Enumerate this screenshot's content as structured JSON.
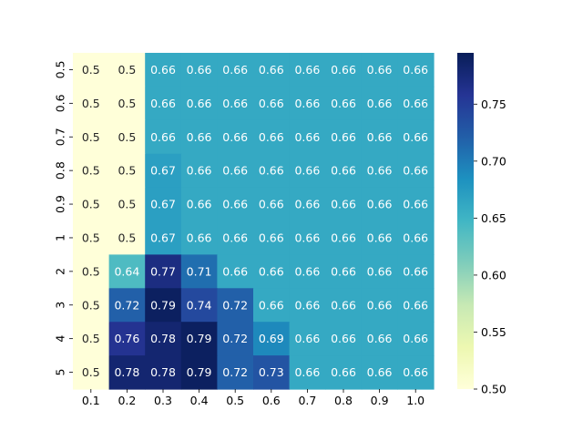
{
  "chart_data": {
    "type": "heatmap",
    "title": "",
    "xlabel": "",
    "ylabel": "",
    "x_categories": [
      "0.1",
      "0.2",
      "0.3",
      "0.4",
      "0.5",
      "0.6",
      "0.7",
      "0.8",
      "0.9",
      "1.0"
    ],
    "y_categories": [
      "0.5",
      "0.6",
      "0.7",
      "0.8",
      "0.9",
      "1",
      "2",
      "3",
      "4",
      "5"
    ],
    "values": [
      [
        0.5,
        0.5,
        0.66,
        0.66,
        0.66,
        0.66,
        0.66,
        0.66,
        0.66,
        0.66
      ],
      [
        0.5,
        0.5,
        0.66,
        0.66,
        0.66,
        0.66,
        0.66,
        0.66,
        0.66,
        0.66
      ],
      [
        0.5,
        0.5,
        0.66,
        0.66,
        0.66,
        0.66,
        0.66,
        0.66,
        0.66,
        0.66
      ],
      [
        0.5,
        0.5,
        0.67,
        0.66,
        0.66,
        0.66,
        0.66,
        0.66,
        0.66,
        0.66
      ],
      [
        0.5,
        0.5,
        0.67,
        0.66,
        0.66,
        0.66,
        0.66,
        0.66,
        0.66,
        0.66
      ],
      [
        0.5,
        0.5,
        0.67,
        0.66,
        0.66,
        0.66,
        0.66,
        0.66,
        0.66,
        0.66
      ],
      [
        0.5,
        0.64,
        0.77,
        0.71,
        0.66,
        0.66,
        0.66,
        0.66,
        0.66,
        0.66
      ],
      [
        0.5,
        0.72,
        0.79,
        0.74,
        0.72,
        0.66,
        0.66,
        0.66,
        0.66,
        0.66
      ],
      [
        0.5,
        0.76,
        0.78,
        0.79,
        0.72,
        0.69,
        0.66,
        0.66,
        0.66,
        0.66
      ],
      [
        0.5,
        0.78,
        0.78,
        0.79,
        0.72,
        0.73,
        0.66,
        0.66,
        0.66,
        0.66
      ]
    ],
    "annotations": [
      [
        "0.5",
        "0.5",
        "0.66",
        "0.66",
        "0.66",
        "0.66",
        "0.66",
        "0.66",
        "0.66",
        "0.66"
      ],
      [
        "0.5",
        "0.5",
        "0.66",
        "0.66",
        "0.66",
        "0.66",
        "0.66",
        "0.66",
        "0.66",
        "0.66"
      ],
      [
        "0.5",
        "0.5",
        "0.66",
        "0.66",
        "0.66",
        "0.66",
        "0.66",
        "0.66",
        "0.66",
        "0.66"
      ],
      [
        "0.5",
        "0.5",
        "0.67",
        "0.66",
        "0.66",
        "0.66",
        "0.66",
        "0.66",
        "0.66",
        "0.66"
      ],
      [
        "0.5",
        "0.5",
        "0.67",
        "0.66",
        "0.66",
        "0.66",
        "0.66",
        "0.66",
        "0.66",
        "0.66"
      ],
      [
        "0.5",
        "0.5",
        "0.67",
        "0.66",
        "0.66",
        "0.66",
        "0.66",
        "0.66",
        "0.66",
        "0.66"
      ],
      [
        "0.5",
        "0.64",
        "0.77",
        "0.71",
        "0.66",
        "0.66",
        "0.66",
        "0.66",
        "0.66",
        "0.66"
      ],
      [
        "0.5",
        "0.72",
        "0.79",
        "0.74",
        "0.72",
        "0.66",
        "0.66",
        "0.66",
        "0.66",
        "0.66"
      ],
      [
        "0.5",
        "0.76",
        "0.78",
        "0.79",
        "0.72",
        "0.69",
        "0.66",
        "0.66",
        "0.66",
        "0.66"
      ],
      [
        "0.5",
        "0.78",
        "0.78",
        "0.79",
        "0.72",
        "0.73",
        "0.66",
        "0.66",
        "0.66",
        "0.66"
      ]
    ],
    "colormap": "YlGnBu",
    "colormap_stops": [
      "#ffffd9",
      "#edf8b1",
      "#c7e9b4",
      "#7fcdbb",
      "#41b6c4",
      "#1d91c0",
      "#225ea8",
      "#253494",
      "#081d58"
    ],
    "vmin": 0.5,
    "vmax": 0.795,
    "colorbar": {
      "ticks": [
        0.5,
        0.55,
        0.6,
        0.65,
        0.7,
        0.75
      ],
      "tick_labels": [
        "0.50",
        "0.55",
        "0.60",
        "0.65",
        "0.70",
        "0.75"
      ]
    },
    "annotation_colors": {
      "dark_text": "#262626",
      "light_text": "#ffffff"
    },
    "legend": "none",
    "grid": false
  }
}
